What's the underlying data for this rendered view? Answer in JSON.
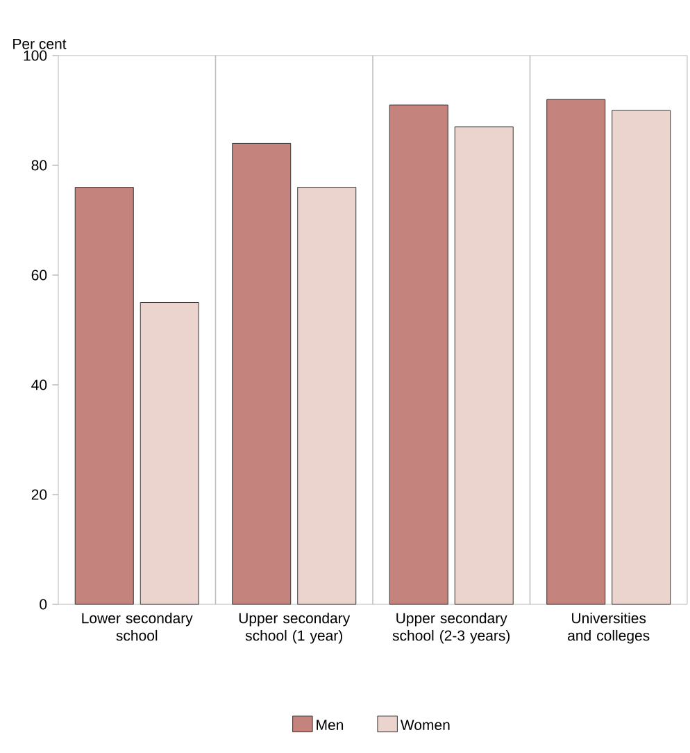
{
  "chart_data": {
    "type": "bar",
    "ylabel": "Per cent",
    "categories": [
      "Lower secondary school",
      "Upper secondary school (1 year)",
      "Upper secondary school (2-3 years)",
      "Universities and colleges"
    ],
    "series": [
      {
        "name": "Men",
        "color": "#c4837c",
        "values": [
          76,
          84,
          91,
          92
        ]
      },
      {
        "name": "Women",
        "color": "#ecd4ce",
        "values": [
          55,
          76,
          87,
          90
        ]
      }
    ],
    "ylim": [
      0,
      100
    ],
    "yticks": [
      0,
      20,
      40,
      60,
      80,
      100
    ],
    "grid": "x",
    "legend": "bottom"
  }
}
